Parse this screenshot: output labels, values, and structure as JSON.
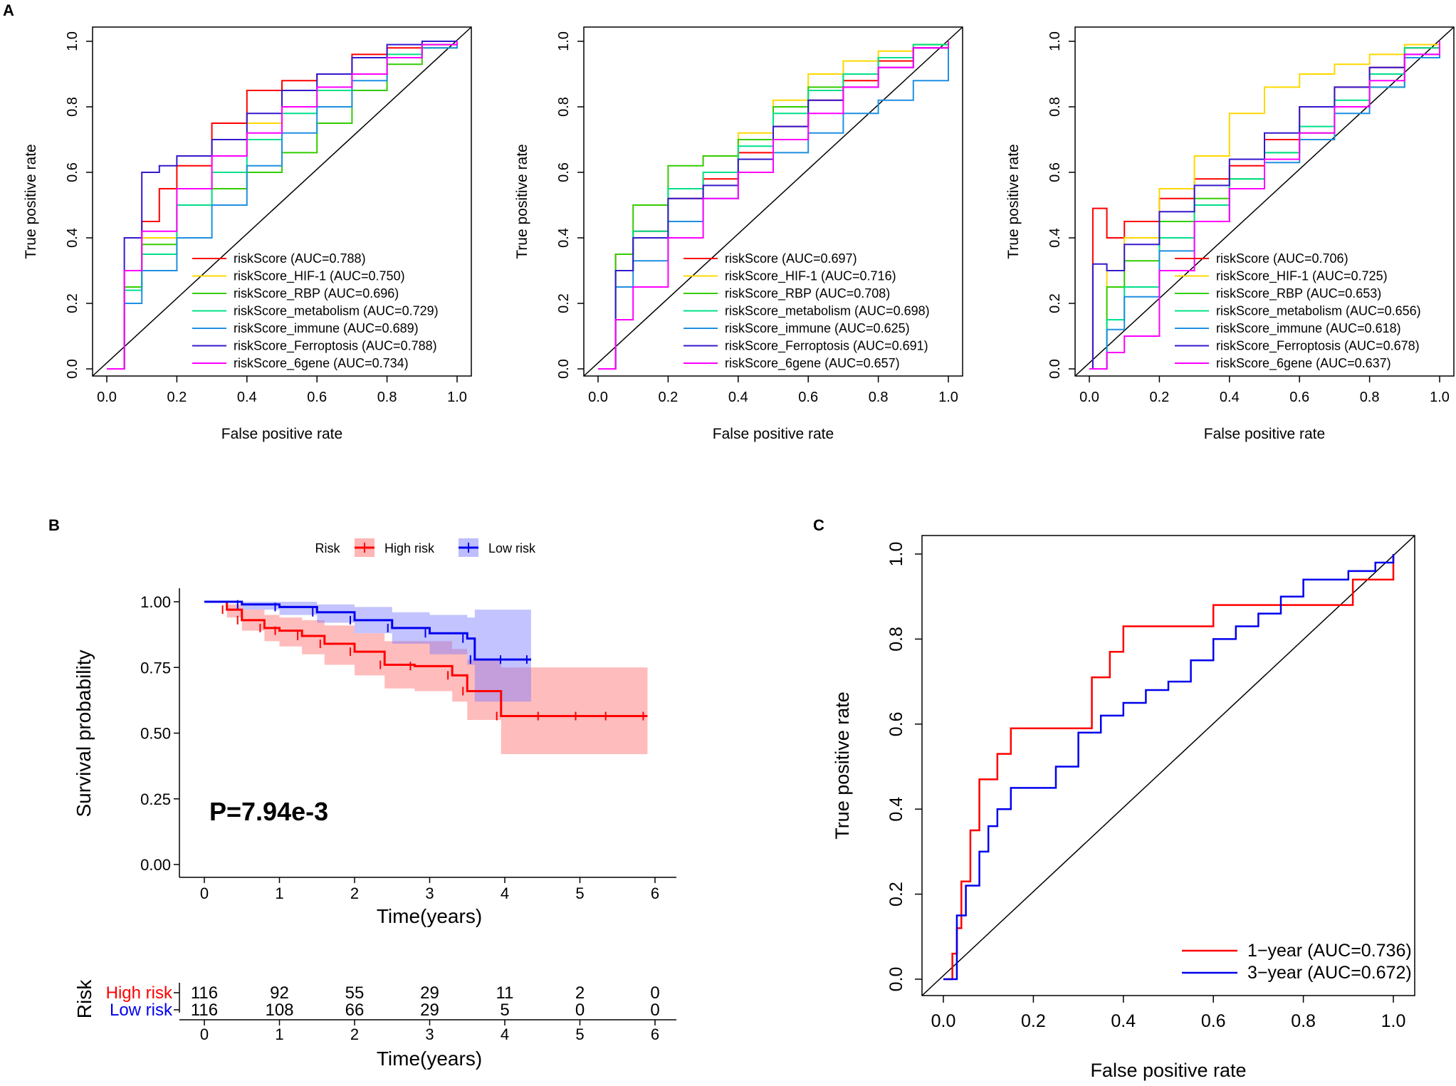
{
  "panels": {
    "A": "A",
    "B": "B",
    "C": "C"
  },
  "roc_common": {
    "xlabel": "False positive rate",
    "ylabel": "True positive rate",
    "ticks": [
      "0.0",
      "0.2",
      "0.4",
      "0.6",
      "0.8",
      "1.0"
    ]
  },
  "chart_data": [
    {
      "id": "A1",
      "type": "line",
      "title": "",
      "xlabel": "False positive rate",
      "ylabel": "True positive rate",
      "xlim": [
        0,
        1
      ],
      "ylim": [
        0,
        1
      ],
      "series": [
        {
          "name": "riskScore (AUC=0.788)",
          "color": "#ff0000",
          "x": [
            0,
            0.05,
            0.1,
            0.15,
            0.2,
            0.3,
            0.4,
            0.5,
            0.6,
            0.7,
            0.8,
            0.9,
            1
          ],
          "y": [
            0,
            0.3,
            0.45,
            0.55,
            0.62,
            0.75,
            0.85,
            0.88,
            0.9,
            0.96,
            0.98,
            0.99,
            1
          ]
        },
        {
          "name": "riskScore_HIF-1 (AUC=0.750)",
          "color": "#ffd700",
          "x": [
            0,
            0.05,
            0.1,
            0.2,
            0.3,
            0.4,
            0.5,
            0.6,
            0.7,
            0.8,
            0.9,
            1
          ],
          "y": [
            0,
            0.25,
            0.4,
            0.55,
            0.65,
            0.75,
            0.8,
            0.85,
            0.9,
            0.95,
            0.99,
            1
          ]
        },
        {
          "name": "riskScore_RBP (AUC=0.696)",
          "color": "#33cc00",
          "x": [
            0,
            0.05,
            0.1,
            0.2,
            0.3,
            0.4,
            0.5,
            0.6,
            0.7,
            0.8,
            0.9,
            1
          ],
          "y": [
            0,
            0.25,
            0.38,
            0.5,
            0.55,
            0.6,
            0.66,
            0.75,
            0.85,
            0.93,
            0.98,
            1
          ]
        },
        {
          "name": "riskScore_metabolism (AUC=0.729)",
          "color": "#00e08a",
          "x": [
            0,
            0.05,
            0.1,
            0.2,
            0.3,
            0.4,
            0.5,
            0.6,
            0.7,
            0.8,
            0.9,
            1
          ],
          "y": [
            0,
            0.24,
            0.35,
            0.5,
            0.6,
            0.7,
            0.78,
            0.85,
            0.9,
            0.96,
            0.99,
            1
          ]
        },
        {
          "name": "riskScore_immune (AUC=0.689)",
          "color": "#1f8fe0",
          "x": [
            0,
            0.05,
            0.1,
            0.2,
            0.3,
            0.4,
            0.5,
            0.6,
            0.7,
            0.8,
            0.9,
            1
          ],
          "y": [
            0,
            0.2,
            0.3,
            0.4,
            0.5,
            0.62,
            0.72,
            0.8,
            0.88,
            0.95,
            0.98,
            1
          ]
        },
        {
          "name": "riskScore_Ferroptosis (AUC=0.788)",
          "color": "#3319cc",
          "x": [
            0,
            0.05,
            0.1,
            0.15,
            0.2,
            0.3,
            0.4,
            0.5,
            0.6,
            0.7,
            0.8,
            0.9,
            1
          ],
          "y": [
            0,
            0.4,
            0.6,
            0.62,
            0.65,
            0.7,
            0.78,
            0.85,
            0.9,
            0.95,
            0.99,
            1,
            1
          ]
        },
        {
          "name": "riskScore_6gene (AUC=0.734)",
          "color": "#ff00ff",
          "x": [
            0,
            0.05,
            0.1,
            0.2,
            0.3,
            0.4,
            0.5,
            0.6,
            0.7,
            0.8,
            0.9,
            1
          ],
          "y": [
            0,
            0.3,
            0.42,
            0.55,
            0.65,
            0.72,
            0.8,
            0.86,
            0.9,
            0.95,
            0.99,
            1
          ]
        }
      ]
    },
    {
      "id": "A2",
      "type": "line",
      "title": "",
      "xlabel": "False positive rate",
      "ylabel": "True positive rate",
      "xlim": [
        0,
        1
      ],
      "ylim": [
        0,
        1
      ],
      "series": [
        {
          "name": "riskScore (AUC=0.697)",
          "color": "#ff0000",
          "x": [
            0,
            0.05,
            0.1,
            0.2,
            0.3,
            0.4,
            0.5,
            0.6,
            0.7,
            0.8,
            0.9,
            1
          ],
          "y": [
            0,
            0.35,
            0.42,
            0.52,
            0.58,
            0.66,
            0.74,
            0.82,
            0.88,
            0.94,
            0.98,
            1
          ]
        },
        {
          "name": "riskScore_HIF-1 (AUC=0.716)",
          "color": "#ffd700",
          "x": [
            0,
            0.05,
            0.1,
            0.2,
            0.3,
            0.4,
            0.5,
            0.6,
            0.7,
            0.8,
            0.9,
            1
          ],
          "y": [
            0,
            0.3,
            0.4,
            0.55,
            0.6,
            0.72,
            0.82,
            0.9,
            0.94,
            0.97,
            0.99,
            1
          ]
        },
        {
          "name": "riskScore_RBP (AUC=0.708)",
          "color": "#33cc00",
          "x": [
            0,
            0.05,
            0.1,
            0.2,
            0.3,
            0.4,
            0.5,
            0.6,
            0.7,
            0.8,
            0.9,
            1
          ],
          "y": [
            0,
            0.35,
            0.5,
            0.62,
            0.65,
            0.7,
            0.8,
            0.86,
            0.9,
            0.95,
            0.99,
            1
          ]
        },
        {
          "name": "riskScore_metabolism (AUC=0.698)",
          "color": "#00e08a",
          "x": [
            0,
            0.05,
            0.1,
            0.2,
            0.3,
            0.4,
            0.5,
            0.6,
            0.7,
            0.8,
            0.9,
            1
          ],
          "y": [
            0,
            0.3,
            0.42,
            0.55,
            0.6,
            0.68,
            0.78,
            0.85,
            0.9,
            0.95,
            0.99,
            1
          ]
        },
        {
          "name": "riskScore_immune (AUC=0.625)",
          "color": "#1f8fe0",
          "x": [
            0,
            0.05,
            0.1,
            0.2,
            0.3,
            0.4,
            0.5,
            0.6,
            0.7,
            0.8,
            0.9,
            1
          ],
          "y": [
            0,
            0.25,
            0.33,
            0.45,
            0.52,
            0.6,
            0.66,
            0.72,
            0.78,
            0.82,
            0.88,
            1
          ]
        },
        {
          "name": "riskScore_Ferroptosis (AUC=0.691)",
          "color": "#3319cc",
          "x": [
            0,
            0.05,
            0.1,
            0.2,
            0.3,
            0.4,
            0.5,
            0.6,
            0.7,
            0.8,
            0.9,
            1
          ],
          "y": [
            0,
            0.3,
            0.4,
            0.52,
            0.56,
            0.64,
            0.74,
            0.82,
            0.86,
            0.92,
            0.98,
            1
          ]
        },
        {
          "name": "riskScore_6gene (AUC=0.657)",
          "color": "#ff00ff",
          "x": [
            0,
            0.05,
            0.1,
            0.2,
            0.3,
            0.4,
            0.5,
            0.6,
            0.7,
            0.8,
            0.9,
            1
          ],
          "y": [
            0,
            0.15,
            0.25,
            0.4,
            0.52,
            0.6,
            0.7,
            0.78,
            0.86,
            0.92,
            0.98,
            1
          ]
        }
      ]
    },
    {
      "id": "A3",
      "type": "line",
      "title": "",
      "xlabel": "False positive rate",
      "ylabel": "True positive rate",
      "xlim": [
        0,
        1
      ],
      "ylim": [
        0,
        1
      ],
      "series": [
        {
          "name": "riskScore (AUC=0.706)",
          "color": "#ff0000",
          "x": [
            0,
            0.01,
            0.05,
            0.1,
            0.2,
            0.3,
            0.4,
            0.5,
            0.6,
            0.7,
            0.8,
            0.9,
            1
          ],
          "y": [
            0,
            0.49,
            0.4,
            0.45,
            0.52,
            0.58,
            0.62,
            0.7,
            0.8,
            0.86,
            0.92,
            0.98,
            1
          ]
        },
        {
          "name": "riskScore_HIF-1 (AUC=0.725)",
          "color": "#ffd700",
          "x": [
            0,
            0.05,
            0.1,
            0.2,
            0.3,
            0.4,
            0.5,
            0.6,
            0.7,
            0.8,
            0.9,
            1
          ],
          "y": [
            0,
            0.3,
            0.4,
            0.55,
            0.65,
            0.78,
            0.86,
            0.9,
            0.93,
            0.96,
            0.99,
            1
          ]
        },
        {
          "name": "riskScore_RBP (AUC=0.653)",
          "color": "#33cc00",
          "x": [
            0,
            0.05,
            0.1,
            0.2,
            0.3,
            0.4,
            0.5,
            0.6,
            0.7,
            0.8,
            0.9,
            1
          ],
          "y": [
            0,
            0.25,
            0.33,
            0.45,
            0.52,
            0.58,
            0.66,
            0.72,
            0.8,
            0.86,
            0.95,
            1
          ]
        },
        {
          "name": "riskScore_metabolism (AUC=0.656)",
          "color": "#00e08a",
          "x": [
            0,
            0.05,
            0.1,
            0.2,
            0.3,
            0.4,
            0.5,
            0.6,
            0.7,
            0.8,
            0.9,
            1
          ],
          "y": [
            0,
            0.15,
            0.25,
            0.4,
            0.5,
            0.58,
            0.66,
            0.74,
            0.82,
            0.9,
            0.98,
            1
          ]
        },
        {
          "name": "riskScore_immune (AUC=0.618)",
          "color": "#1f8fe0",
          "x": [
            0,
            0.05,
            0.1,
            0.2,
            0.3,
            0.4,
            0.5,
            0.6,
            0.7,
            0.8,
            0.9,
            1
          ],
          "y": [
            0,
            0.12,
            0.22,
            0.36,
            0.45,
            0.55,
            0.63,
            0.7,
            0.78,
            0.86,
            0.95,
            1
          ]
        },
        {
          "name": "riskScore_Ferroptosis (AUC=0.678)",
          "color": "#3319cc",
          "x": [
            0,
            0.01,
            0.05,
            0.1,
            0.2,
            0.3,
            0.4,
            0.5,
            0.6,
            0.7,
            0.8,
            0.9,
            1
          ],
          "y": [
            0,
            0.32,
            0.3,
            0.38,
            0.48,
            0.56,
            0.64,
            0.72,
            0.8,
            0.86,
            0.92,
            0.96,
            1
          ]
        },
        {
          "name": "riskScore_6gene (AUC=0.637)",
          "color": "#ff00ff",
          "x": [
            0,
            0.05,
            0.1,
            0.2,
            0.3,
            0.4,
            0.5,
            0.6,
            0.7,
            0.8,
            0.9,
            1
          ],
          "y": [
            0,
            0.05,
            0.1,
            0.3,
            0.45,
            0.55,
            0.64,
            0.72,
            0.8,
            0.88,
            0.96,
            1
          ]
        }
      ]
    },
    {
      "id": "B",
      "type": "line",
      "title": "",
      "xlabel": "Time(years)",
      "ylabel": "Survival probability",
      "xlim": [
        0,
        6
      ],
      "ylim": [
        0,
        1
      ],
      "legend_title": "Risk",
      "pvalue": "P=7.94e-3",
      "series": [
        {
          "name": "High risk",
          "color": "#ff0000",
          "ci_color": "#ff6b6b",
          "x": [
            0,
            0.3,
            0.5,
            0.8,
            1.0,
            1.3,
            1.6,
            2.0,
            2.4,
            2.8,
            3.3,
            3.5,
            3.95,
            4.5,
            5.0,
            5.4,
            5.9
          ],
          "y": [
            1.0,
            0.97,
            0.93,
            0.9,
            0.89,
            0.87,
            0.84,
            0.81,
            0.76,
            0.755,
            0.72,
            0.66,
            0.565,
            0.565,
            0.565,
            0.565,
            0.565
          ],
          "lower": [
            1.0,
            0.94,
            0.89,
            0.85,
            0.83,
            0.8,
            0.76,
            0.72,
            0.67,
            0.66,
            0.62,
            0.55,
            0.42,
            0.42,
            0.42,
            0.42,
            0.42
          ],
          "upper": [
            1.0,
            0.99,
            0.97,
            0.95,
            0.94,
            0.93,
            0.91,
            0.88,
            0.85,
            0.85,
            0.82,
            0.78,
            0.75,
            0.75,
            0.75,
            0.75,
            0.75
          ]
        },
        {
          "name": "Low risk",
          "color": "#0000ee",
          "ci_color": "#7b7bff",
          "x": [
            0,
            0.5,
            1.0,
            1.5,
            2.0,
            2.5,
            3.0,
            3.5,
            3.6,
            4.0,
            4.35
          ],
          "y": [
            1.0,
            0.99,
            0.98,
            0.96,
            0.93,
            0.9,
            0.88,
            0.86,
            0.78,
            0.78,
            0.78
          ],
          "lower": [
            1.0,
            0.97,
            0.95,
            0.92,
            0.88,
            0.84,
            0.8,
            0.76,
            0.62,
            0.62,
            0.62
          ],
          "upper": [
            1.0,
            1.0,
            1.0,
            0.99,
            0.98,
            0.96,
            0.95,
            0.94,
            0.97,
            0.97,
            0.97
          ]
        }
      ],
      "xticks": [
        "0",
        "1",
        "2",
        "3",
        "4",
        "5",
        "6"
      ],
      "yticks": [
        "0.00",
        "0.25",
        "0.50",
        "0.75",
        "1.00"
      ],
      "risk_table": {
        "ylabel": "Risk",
        "xlabel": "Time(years)",
        "rows": [
          {
            "label": "High risk",
            "color": "#ff0000",
            "values": [
              "116",
              "92",
              "55",
              "29",
              "11",
              "2",
              "0"
            ]
          },
          {
            "label": "Low risk",
            "color": "#0000ee",
            "values": [
              "116",
              "108",
              "66",
              "29",
              "5",
              "0",
              "0"
            ]
          }
        ]
      }
    },
    {
      "id": "C",
      "type": "line",
      "title": "",
      "xlabel": "False positive rate",
      "ylabel": "True positive rate",
      "xlim": [
        0,
        1
      ],
      "ylim": [
        0,
        1
      ],
      "series": [
        {
          "name": "1−year (AUC=0.736)",
          "color": "#ff0000",
          "x": [
            0,
            0.02,
            0.03,
            0.04,
            0.06,
            0.08,
            0.12,
            0.15,
            0.3,
            0.33,
            0.37,
            0.4,
            0.59,
            0.6,
            0.9,
            0.91,
            0.98,
            1
          ],
          "y": [
            0,
            0.06,
            0.12,
            0.23,
            0.35,
            0.47,
            0.53,
            0.59,
            0.59,
            0.71,
            0.77,
            0.83,
            0.83,
            0.88,
            0.88,
            0.94,
            0.94,
            1
          ]
        },
        {
          "name": "3−year (AUC=0.672)",
          "color": "#0000ee",
          "x": [
            0,
            0.03,
            0.05,
            0.08,
            0.1,
            0.12,
            0.15,
            0.2,
            0.25,
            0.3,
            0.35,
            0.4,
            0.45,
            0.5,
            0.55,
            0.6,
            0.65,
            0.7,
            0.75,
            0.8,
            0.9,
            0.96,
            1
          ],
          "y": [
            0,
            0.15,
            0.22,
            0.3,
            0.36,
            0.4,
            0.45,
            0.45,
            0.5,
            0.58,
            0.62,
            0.65,
            0.68,
            0.7,
            0.75,
            0.8,
            0.83,
            0.86,
            0.9,
            0.94,
            0.96,
            0.98,
            1
          ]
        }
      ]
    }
  ]
}
